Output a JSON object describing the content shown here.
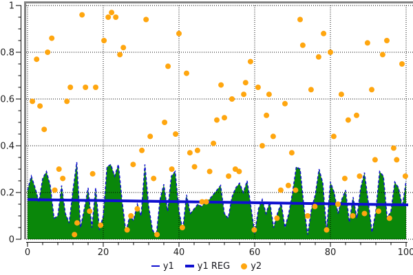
{
  "chart_data": {
    "type": "combo",
    "title": "",
    "xlabel": "",
    "ylabel": "",
    "xlim": [
      0,
      100
    ],
    "ylim": [
      0,
      1
    ],
    "grid": "dotted major gridlines, both axes",
    "x_axis": {
      "major_ticks": [
        0,
        20,
        40,
        60,
        80,
        100
      ],
      "tick_labels": [
        "0",
        "20",
        "40",
        "60",
        "80",
        "100"
      ],
      "minor_step": 4
    },
    "y_axis": {
      "major_ticks": [
        0,
        0.2,
        0.4,
        0.6,
        0.8,
        1
      ],
      "tick_labels": [
        "0",
        "0.2",
        "0.4",
        "0.6",
        "0.8",
        "1"
      ],
      "minor_step": 0.05
    },
    "series": [
      {
        "name": "y1",
        "type": "area",
        "fill_color": "#0a870a",
        "line_color": "#0f0fd0",
        "line_style": "dashed",
        "x_start": 0,
        "x_step": 1,
        "values": [
          0.21,
          0.27,
          0.22,
          0.16,
          0.26,
          0.29,
          0.23,
          0.09,
          0.1,
          0.23,
          0.11,
          0.07,
          0.21,
          0.33,
          0.05,
          0.13,
          0.22,
          0.05,
          0.22,
          0.04,
          0.1,
          0.31,
          0.32,
          0.27,
          0.32,
          0.16,
          0.03,
          0.1,
          0.08,
          0.15,
          0.1,
          0.32,
          0.14,
          0.04,
          0.015,
          0.17,
          0.235,
          0.12,
          0.27,
          0.29,
          0.12,
          0.04,
          0.19,
          0.11,
          0.13,
          0.15,
          0.14,
          0.16,
          0.17,
          0.19,
          0.21,
          0.23,
          0.11,
          0.09,
          0.18,
          0.22,
          0.24,
          0.2,
          0.25,
          0.14,
          0.025,
          0.13,
          0.17,
          0.11,
          0.16,
          0.05,
          0.11,
          0.155,
          0.05,
          0.11,
          0.2,
          0.31,
          0.3,
          0.14,
          0.02,
          0.13,
          0.19,
          0.3,
          0.24,
          0.035,
          0.245,
          0.2,
          0.11,
          0.17,
          0.21,
          0.073,
          0.18,
          0.09,
          0.22,
          0.285,
          0.16,
          0.03,
          0.12,
          0.29,
          0.27,
          0.09,
          0.12,
          0.245,
          0.22,
          0.14,
          0.25
        ]
      },
      {
        "name": "y1 REG",
        "type": "line",
        "color": "#0f0fd0",
        "width": 4,
        "points": [
          [
            0,
            0.17
          ],
          [
            100,
            0.147
          ]
        ]
      },
      {
        "name": "y2",
        "type": "scatter",
        "color": "#ffa60f",
        "radius": 4,
        "points": [
          [
            1.3,
            0.59
          ],
          [
            2.4,
            0.77
          ],
          [
            3.3,
            0.57
          ],
          [
            4.4,
            0.47
          ],
          [
            5.3,
            0.8
          ],
          [
            6.4,
            0.86
          ],
          [
            7.2,
            0.21
          ],
          [
            8.3,
            0.3
          ],
          [
            9.3,
            0.26
          ],
          [
            10.4,
            0.59
          ],
          [
            11.3,
            0.65
          ],
          [
            12.4,
            0.02
          ],
          [
            13.1,
            0.07
          ],
          [
            14.4,
            0.96
          ],
          [
            15.3,
            0.65
          ],
          [
            16.4,
            0.12
          ],
          [
            17.2,
            0.28
          ],
          [
            18.0,
            0.65
          ],
          [
            19.3,
            0.06
          ],
          [
            20.2,
            0.85
          ],
          [
            21.3,
            0.95
          ],
          [
            22.2,
            0.97
          ],
          [
            23.3,
            0.95
          ],
          [
            24.4,
            0.79
          ],
          [
            25.3,
            0.82
          ],
          [
            26.3,
            0.04
          ],
          [
            27.3,
            0.1
          ],
          [
            27.9,
            0.32
          ],
          [
            29.0,
            0.13
          ],
          [
            30.2,
            0.38
          ],
          [
            31.3,
            0.94
          ],
          [
            32.4,
            0.44
          ],
          [
            33.3,
            0.26
          ],
          [
            34.2,
            0.02
          ],
          [
            36.2,
            0.5
          ],
          [
            37.1,
            0.74
          ],
          [
            38.1,
            0.3
          ],
          [
            39.1,
            0.45
          ],
          [
            40.0,
            0.88
          ],
          [
            40.9,
            0.05
          ],
          [
            42.0,
            0.71
          ],
          [
            42.9,
            0.37
          ],
          [
            44.1,
            0.31
          ],
          [
            44.9,
            0.38
          ],
          [
            46.1,
            0.16
          ],
          [
            47.2,
            0.16
          ],
          [
            48.1,
            0.29
          ],
          [
            49.1,
            0.41
          ],
          [
            50.0,
            0.51
          ],
          [
            51.1,
            0.66
          ],
          [
            52.0,
            0.52
          ],
          [
            53.1,
            0.27
          ],
          [
            54.0,
            0.6
          ],
          [
            54.9,
            0.3
          ],
          [
            55.9,
            0.29
          ],
          [
            57.1,
            0.62
          ],
          [
            57.6,
            0.67
          ],
          [
            58.9,
            0.76
          ],
          [
            59.9,
            0.04
          ],
          [
            60.9,
            0.65
          ],
          [
            62.0,
            0.4
          ],
          [
            63.1,
            0.53
          ],
          [
            63.8,
            0.62
          ],
          [
            64.9,
            0.44
          ],
          [
            65.9,
            0.09
          ],
          [
            66.9,
            0.21
          ],
          [
            68.0,
            0.58
          ],
          [
            68.9,
            0.23
          ],
          [
            69.8,
            0.37
          ],
          [
            70.8,
            0.21
          ],
          [
            72.0,
            0.94
          ],
          [
            72.7,
            0.83
          ],
          [
            74.0,
            0.1
          ],
          [
            74.9,
            0.64
          ],
          [
            75.9,
            0.14
          ],
          [
            76.9,
            0.78
          ],
          [
            78.2,
            0.88
          ],
          [
            79.0,
            0.04
          ],
          [
            80.0,
            0.8
          ],
          [
            80.9,
            0.44
          ],
          [
            82.0,
            0.15
          ],
          [
            82.9,
            0.62
          ],
          [
            83.8,
            0.26
          ],
          [
            84.7,
            0.51
          ],
          [
            85.9,
            0.1
          ],
          [
            86.9,
            0.53
          ],
          [
            87.7,
            0.27
          ],
          [
            89.0,
            0.11
          ],
          [
            89.8,
            0.84
          ],
          [
            90.9,
            0.64
          ],
          [
            91.8,
            0.34
          ],
          [
            92.7,
            0.12
          ],
          [
            93.8,
            0.79
          ],
          [
            94.9,
            0.85
          ],
          [
            95.6,
            0.09
          ],
          [
            96.7,
            0.39
          ],
          [
            97.5,
            0.34
          ],
          [
            98.9,
            0.75
          ],
          [
            99.8,
            0.27
          ]
        ]
      }
    ],
    "legend": {
      "position": "bottom-center",
      "items": [
        {
          "label": "y1",
          "marker": "line-thin",
          "color": "#0f0fd0"
        },
        {
          "label": "y1 REG",
          "marker": "line-thick",
          "color": "#0f0fd0"
        },
        {
          "label": "y2",
          "marker": "dot",
          "color": "#ffa60f"
        }
      ]
    },
    "colors": {
      "area_fill": "#0a870a",
      "line_blue": "#0f0fd0",
      "scatter_orange": "#ffa60f",
      "plot_border_gray": "#828282",
      "grid": "#000000",
      "tick_text": "#1c1c1c",
      "background": "#ffffff"
    }
  }
}
